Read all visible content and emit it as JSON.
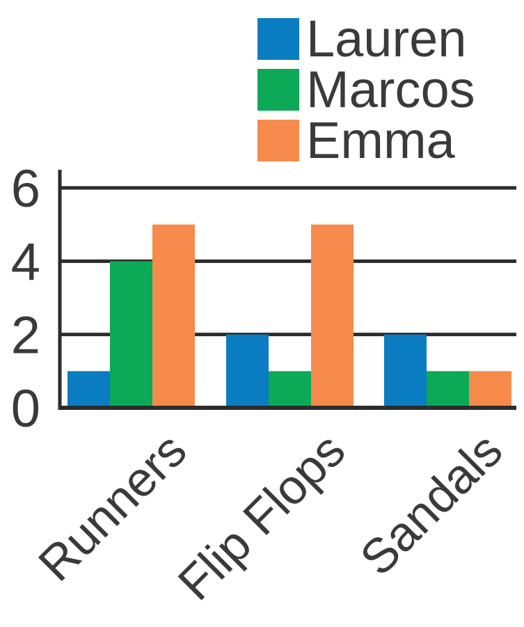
{
  "chart_data": {
    "type": "bar",
    "title": "",
    "xlabel": "",
    "ylabel": "",
    "categories": [
      "Runners",
      "Flip Flops",
      "Sandals"
    ],
    "series": [
      {
        "name": "Lauren",
        "values": [
          1,
          2,
          2
        ],
        "color": "#0a7cc1"
      },
      {
        "name": "Marcos",
        "values": [
          4,
          1,
          1
        ],
        "color": "#0ca957"
      },
      {
        "name": "Emma",
        "values": [
          5,
          5,
          1
        ],
        "color": "#f58a4b"
      }
    ],
    "ylim": [
      0,
      6
    ],
    "yticks": [
      "0",
      "2",
      "4",
      "6"
    ],
    "grid": true,
    "legend_position": "top-right"
  }
}
